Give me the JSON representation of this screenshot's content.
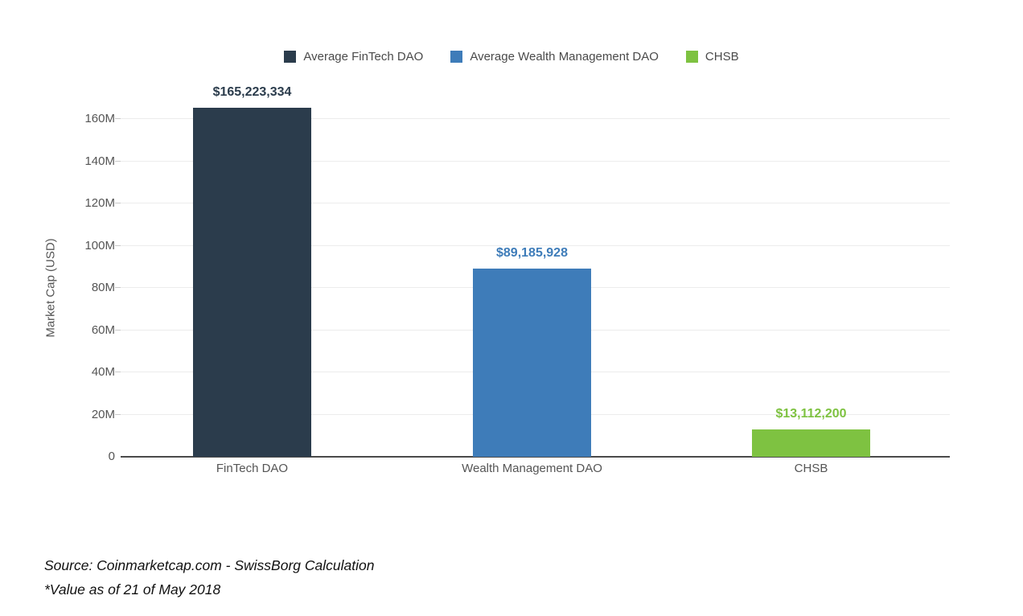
{
  "chart_data": {
    "type": "bar",
    "title": "",
    "xlabel": "",
    "ylabel": "Market Cap (USD)",
    "categories": [
      "FinTech DAO",
      "Wealth Management DAO",
      "CHSB"
    ],
    "values": [
      165223334,
      89185928,
      13112200
    ],
    "value_labels": [
      "$165,223,334",
      "$89,185,928",
      "$13,112,200"
    ],
    "bar_colors": [
      "#2b3c4c",
      "#3e7cb9",
      "#7ec241"
    ],
    "yticks": [
      "0",
      "20M",
      "40M",
      "60M",
      "80M",
      "100M",
      "120M",
      "140M",
      "160M"
    ],
    "ytick_values": [
      0,
      20000000,
      40000000,
      60000000,
      80000000,
      100000000,
      120000000,
      140000000,
      160000000
    ],
    "ylim": [
      0,
      172000000
    ],
    "grid": true,
    "legend_position": "top",
    "legend": [
      {
        "label": "Average FinTech DAO",
        "color": "#2b3c4c"
      },
      {
        "label": "Average Wealth Management DAO",
        "color": "#3e7cb9"
      },
      {
        "label": "CHSB",
        "color": "#7ec241"
      }
    ]
  },
  "footer": {
    "source": "Source: Coinmarketcap.com - SwissBorg Calculation",
    "note": "*Value as of 21 of May 2018"
  },
  "colors": {
    "axis_line": "#4a4a4a",
    "gridline": "#ececec",
    "tick_text": "#555555",
    "legend_text": "#4a4a4a",
    "background": "#ffffff"
  }
}
